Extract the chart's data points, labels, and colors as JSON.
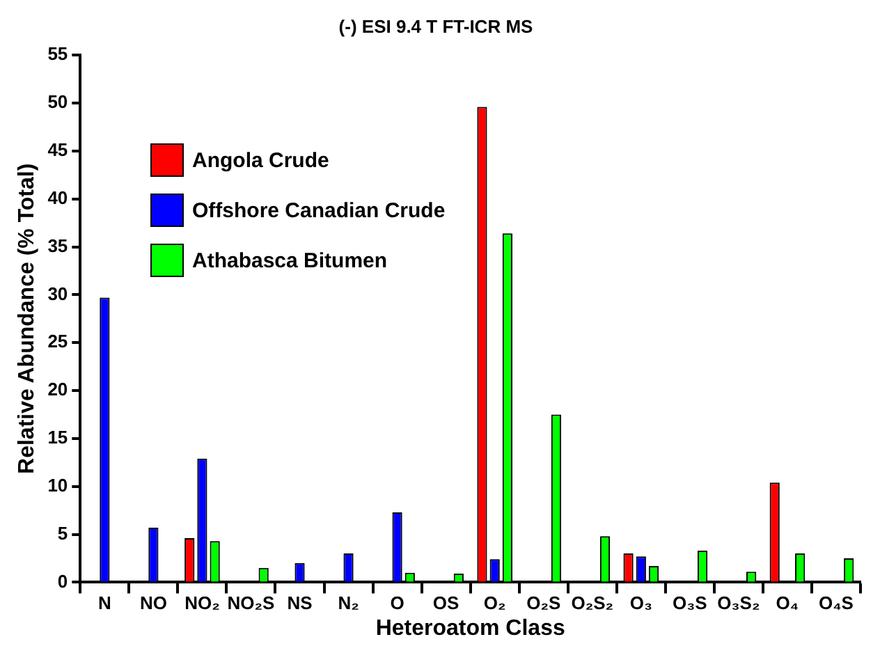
{
  "chart_data": {
    "type": "bar",
    "title": "(-) ESI 9.4 T FT-ICR MS",
    "xlabel": "Heteroatom Class",
    "ylabel": "Relative Abundance (% Total)",
    "categories": [
      "N",
      "NO",
      "NO₂",
      "NO₂S",
      "NS",
      "N₂",
      "O",
      "OS",
      "O₂",
      "O₂S",
      "O₂S₂",
      "O₃",
      "O₃S",
      "O₃S₂",
      "O₄",
      "O₄S"
    ],
    "series": [
      {
        "name": "Angola Crude",
        "color": "#ff0000",
        "values": [
          null,
          null,
          4.6,
          null,
          null,
          null,
          null,
          null,
          49.6,
          null,
          null,
          3.0,
          null,
          null,
          10.4,
          null
        ]
      },
      {
        "name": "Offshore Canadian Crude",
        "color": "#0000ff",
        "values": [
          29.7,
          5.7,
          12.9,
          null,
          2.0,
          3.0,
          7.3,
          null,
          2.4,
          null,
          null,
          2.7,
          null,
          null,
          null,
          null
        ]
      },
      {
        "name": "Athabasca Bitumen",
        "color": "#00ff00",
        "values": [
          null,
          null,
          4.3,
          1.5,
          null,
          null,
          1.0,
          0.9,
          36.4,
          17.5,
          4.8,
          1.7,
          3.3,
          1.1,
          3.0,
          2.5
        ]
      }
    ],
    "ylim": [
      0,
      55
    ],
    "yticks": [
      0,
      5,
      10,
      15,
      20,
      25,
      30,
      35,
      40,
      45,
      50,
      55
    ],
    "grid": false,
    "legend": "top left"
  }
}
